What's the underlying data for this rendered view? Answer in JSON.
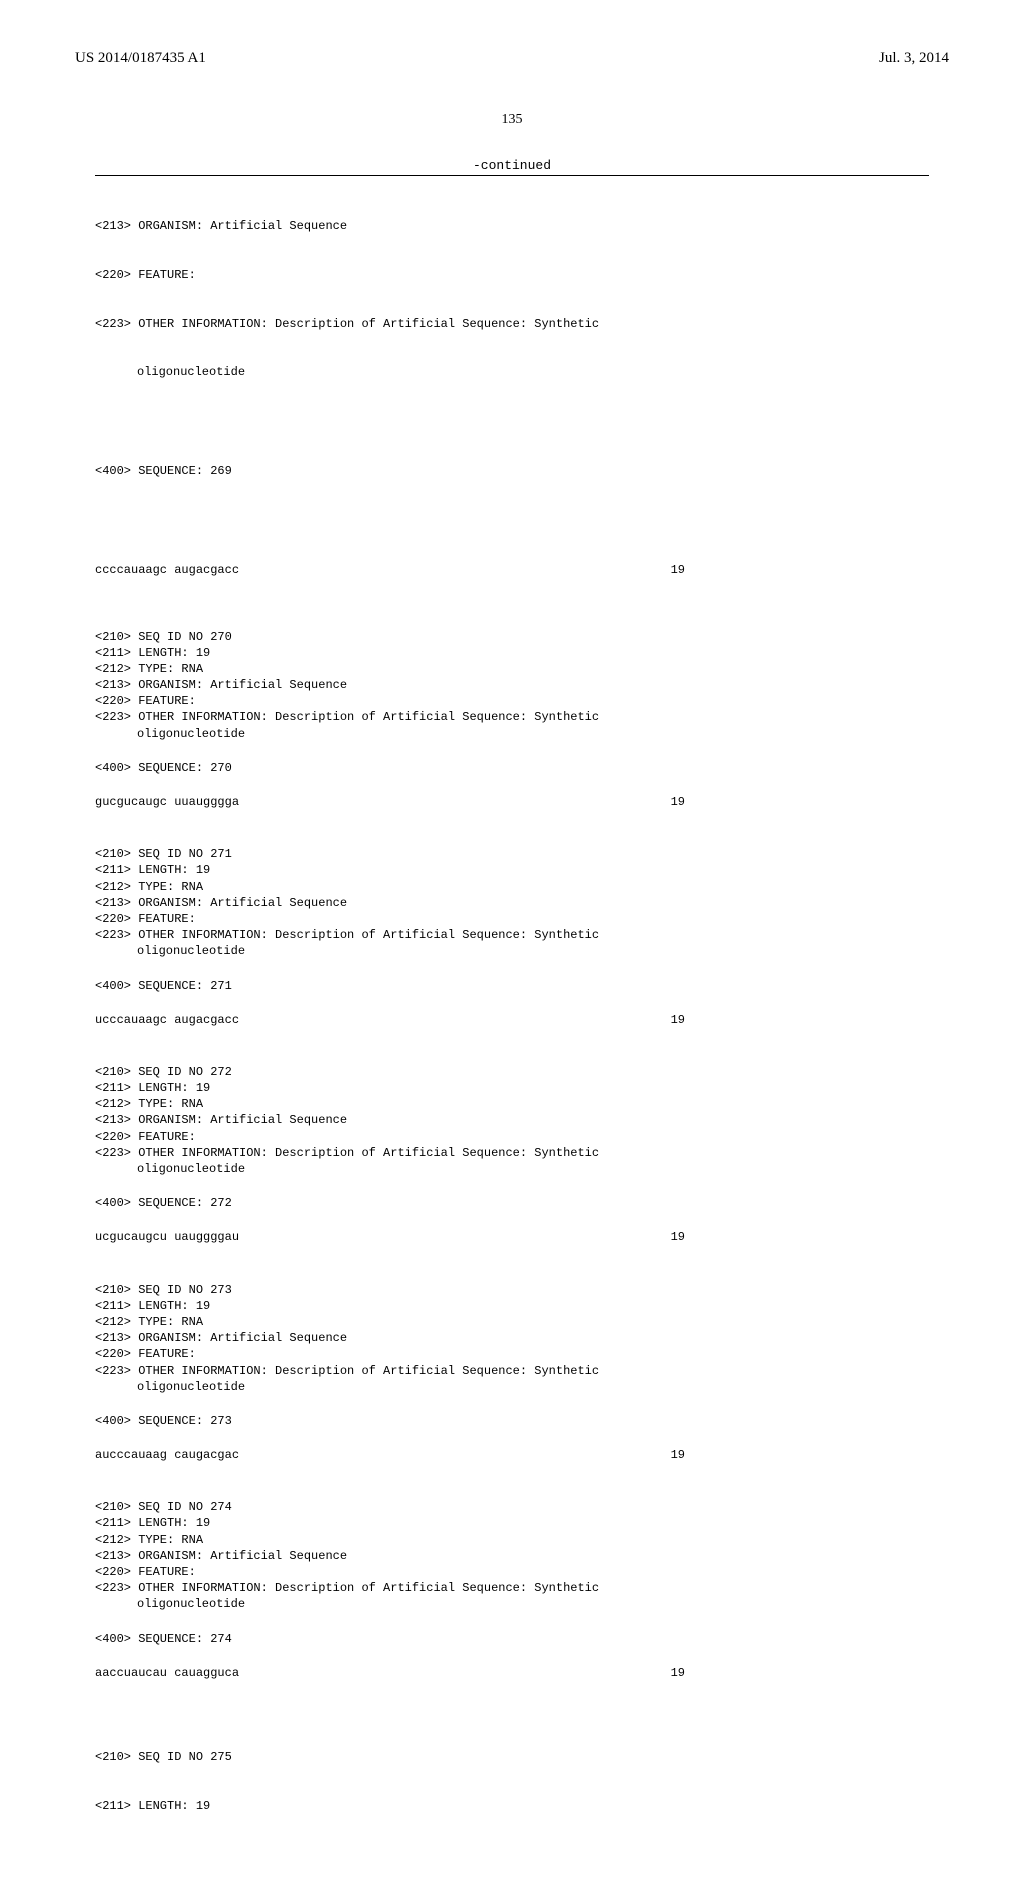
{
  "header": {
    "pub_number": "US 2014/0187435 A1",
    "pub_date": "Jul. 3, 2014"
  },
  "page_number": "135",
  "continued_label": "-continued",
  "partial_top": {
    "tags": [
      "<213> ORGANISM: Artificial Sequence",
      "<220> FEATURE:",
      "<223> OTHER INFORMATION: Description of Artificial Sequence: Synthetic"
    ],
    "indent_line": "oligonucleotide",
    "seq_label": "<400> SEQUENCE: 269",
    "sequence": "ccccauaagc augacgacc",
    "length": "19"
  },
  "entries": [
    {
      "tags": [
        "<210> SEQ ID NO 270",
        "<211> LENGTH: 19",
        "<212> TYPE: RNA",
        "<213> ORGANISM: Artificial Sequence",
        "<220> FEATURE:",
        "<223> OTHER INFORMATION: Description of Artificial Sequence: Synthetic"
      ],
      "indent_line": "oligonucleotide",
      "seq_label": "<400> SEQUENCE: 270",
      "sequence": "gucgucaugc uuaugggga",
      "length": "19"
    },
    {
      "tags": [
        "<210> SEQ ID NO 271",
        "<211> LENGTH: 19",
        "<212> TYPE: RNA",
        "<213> ORGANISM: Artificial Sequence",
        "<220> FEATURE:",
        "<223> OTHER INFORMATION: Description of Artificial Sequence: Synthetic"
      ],
      "indent_line": "oligonucleotide",
      "seq_label": "<400> SEQUENCE: 271",
      "sequence": "ucccauaagc augacgacc",
      "length": "19"
    },
    {
      "tags": [
        "<210> SEQ ID NO 272",
        "<211> LENGTH: 19",
        "<212> TYPE: RNA",
        "<213> ORGANISM: Artificial Sequence",
        "<220> FEATURE:",
        "<223> OTHER INFORMATION: Description of Artificial Sequence: Synthetic"
      ],
      "indent_line": "oligonucleotide",
      "seq_label": "<400> SEQUENCE: 272",
      "sequence": "ucgucaugcu uauggggau",
      "length": "19"
    },
    {
      "tags": [
        "<210> SEQ ID NO 273",
        "<211> LENGTH: 19",
        "<212> TYPE: RNA",
        "<213> ORGANISM: Artificial Sequence",
        "<220> FEATURE:",
        "<223> OTHER INFORMATION: Description of Artificial Sequence: Synthetic"
      ],
      "indent_line": "oligonucleotide",
      "seq_label": "<400> SEQUENCE: 273",
      "sequence": "aucccauaag caugacgac",
      "length": "19"
    },
    {
      "tags": [
        "<210> SEQ ID NO 274",
        "<211> LENGTH: 19",
        "<212> TYPE: RNA",
        "<213> ORGANISM: Artificial Sequence",
        "<220> FEATURE:",
        "<223> OTHER INFORMATION: Description of Artificial Sequence: Synthetic"
      ],
      "indent_line": "oligonucleotide",
      "seq_label": "<400> SEQUENCE: 274",
      "sequence": "aaccuaucau cauagguca",
      "length": "19"
    }
  ],
  "partial_bottom": {
    "tags": [
      "<210> SEQ ID NO 275",
      "<211> LENGTH: 19"
    ]
  }
}
